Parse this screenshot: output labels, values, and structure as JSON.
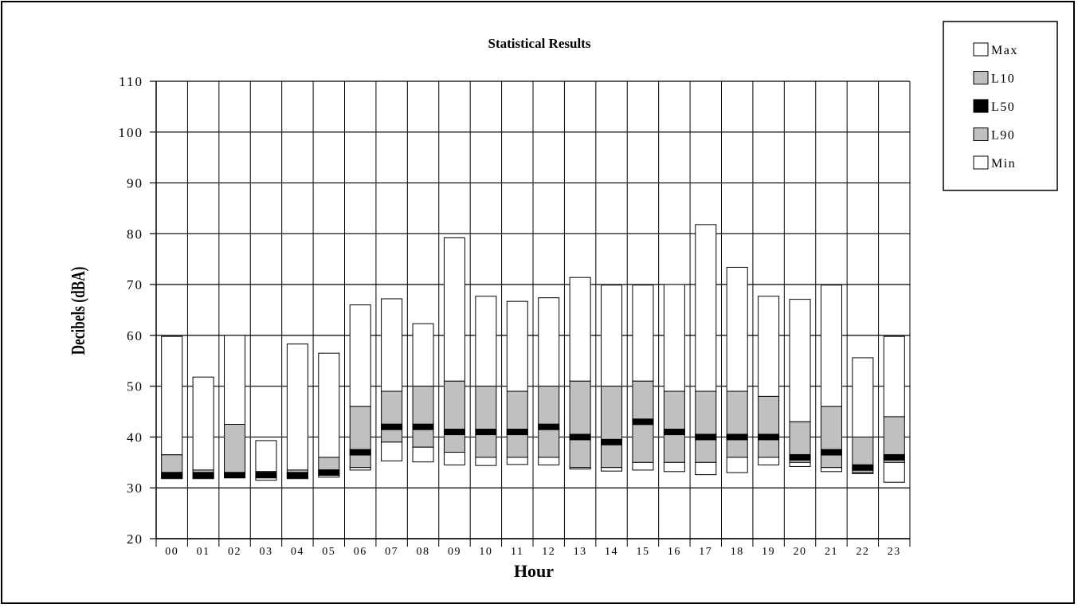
{
  "chart_data": {
    "type": "bar",
    "title": "Statistical Results",
    "xlabel": "Hour",
    "ylabel": "Decibels (dBA)",
    "ylim": [
      20,
      110
    ],
    "yticks": [
      "20",
      "30",
      "40",
      "50",
      "60",
      "70",
      "80",
      "90",
      "100",
      "110"
    ],
    "grid": true,
    "legend_position": "top-right",
    "categories": [
      "00",
      "01",
      "02",
      "03",
      "04",
      "05",
      "06",
      "07",
      "08",
      "09",
      "10",
      "11",
      "12",
      "13",
      "14",
      "15",
      "16",
      "17",
      "18",
      "19",
      "20",
      "21",
      "22",
      "23"
    ],
    "series": [
      {
        "name": "Max",
        "values": [
          59.8,
          51.8,
          60,
          39.3,
          58.3,
          56.5,
          66,
          67.2,
          62.3,
          79.2,
          67.7,
          66.7,
          67.4,
          71.4,
          69.9,
          69.9,
          70,
          81.8,
          73.4,
          67.7,
          67.1,
          69.9,
          55.6,
          59.8
        ]
      },
      {
        "name": "L10",
        "values": [
          36.5,
          33.5,
          42.5,
          33.2,
          33.5,
          36,
          46,
          49,
          50,
          51,
          50,
          49,
          50,
          51,
          50,
          51,
          49,
          49,
          49,
          48,
          43,
          46,
          40,
          44
        ]
      },
      {
        "name": "L50",
        "values": [
          32.5,
          32.5,
          32.5,
          32.5,
          32.5,
          33,
          37,
          42,
          42,
          41,
          41,
          41,
          42,
          40,
          39,
          43,
          41,
          40,
          40,
          40,
          36,
          37,
          34,
          36
        ]
      },
      {
        "name": "L90",
        "values": [
          32,
          32,
          32.2,
          32,
          32,
          32.5,
          34,
          39,
          38,
          37,
          36,
          36,
          36,
          34,
          34,
          35,
          35,
          35,
          36,
          36,
          35,
          34,
          33,
          35
        ]
      },
      {
        "name": "Min",
        "values": [
          31.8,
          31.8,
          32,
          31.5,
          31.8,
          32.1,
          33.5,
          35.3,
          35.1,
          34.5,
          34.4,
          34.6,
          34.5,
          33.7,
          33.3,
          33.5,
          33.2,
          32.6,
          33,
          34.5,
          34.2,
          33.2,
          32.8,
          31.1
        ]
      }
    ]
  },
  "legend": [
    {
      "label": "Max",
      "color": "#ffffff"
    },
    {
      "label": "L10",
      "color": "#c0c0c0"
    },
    {
      "label": "L50",
      "color": "#000000"
    },
    {
      "label": "L90",
      "color": "#c0c0c0"
    },
    {
      "label": "Min",
      "color": "#ffffff"
    }
  ]
}
